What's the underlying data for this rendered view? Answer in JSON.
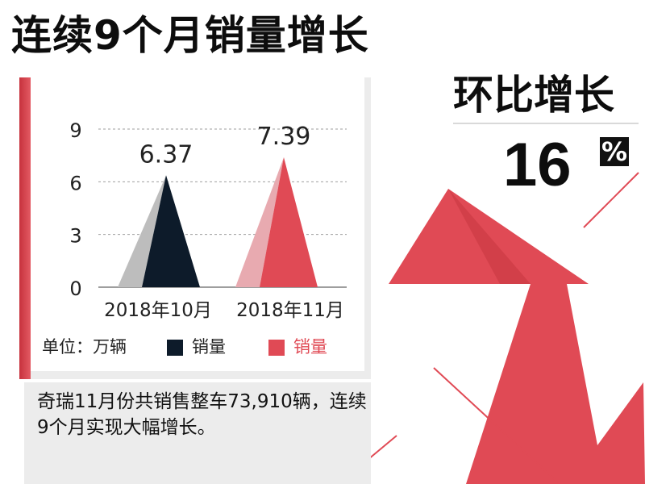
{
  "headline": "连续9个月销量增长",
  "rate": {
    "title": "环比增长",
    "value": "16",
    "unit": "%"
  },
  "legend": {
    "unit_label": "单位：万辆",
    "series1": "销量",
    "series2": "销量"
  },
  "note": "奇瑞11月份共销售整车73,910辆，连续9个月实现大幅增长。",
  "colors": {
    "dark": "#0d1b2a",
    "red": "#e04a55",
    "grey": "#bdbdbd",
    "pink": "#e8aab0",
    "arrow": "#e04a55"
  },
  "chart_data": {
    "type": "bar",
    "categories": [
      "2018年10月",
      "2018年11月"
    ],
    "values": [
      6.37,
      7.39
    ],
    "labels": [
      "6.37",
      "7.39"
    ],
    "yticks": [
      "9",
      "6",
      "3",
      "0"
    ],
    "ylim": [
      0,
      9
    ],
    "grid": true
  }
}
